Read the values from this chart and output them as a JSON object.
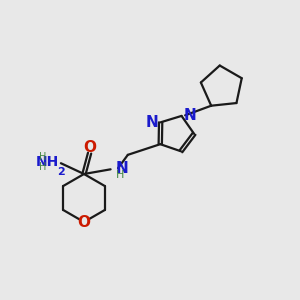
{
  "bg_color": "#e8e8e8",
  "bond_color": "#1a1a1a",
  "N_color": "#1a1acc",
  "O_color": "#cc1a00",
  "H_color": "#448844",
  "line_width": 1.6,
  "font_size": 10,
  "small_font_size": 8,
  "figsize": [
    3.0,
    3.0
  ],
  "dpi": 100,
  "xlim": [
    0,
    10
  ],
  "ylim": [
    0,
    10
  ]
}
